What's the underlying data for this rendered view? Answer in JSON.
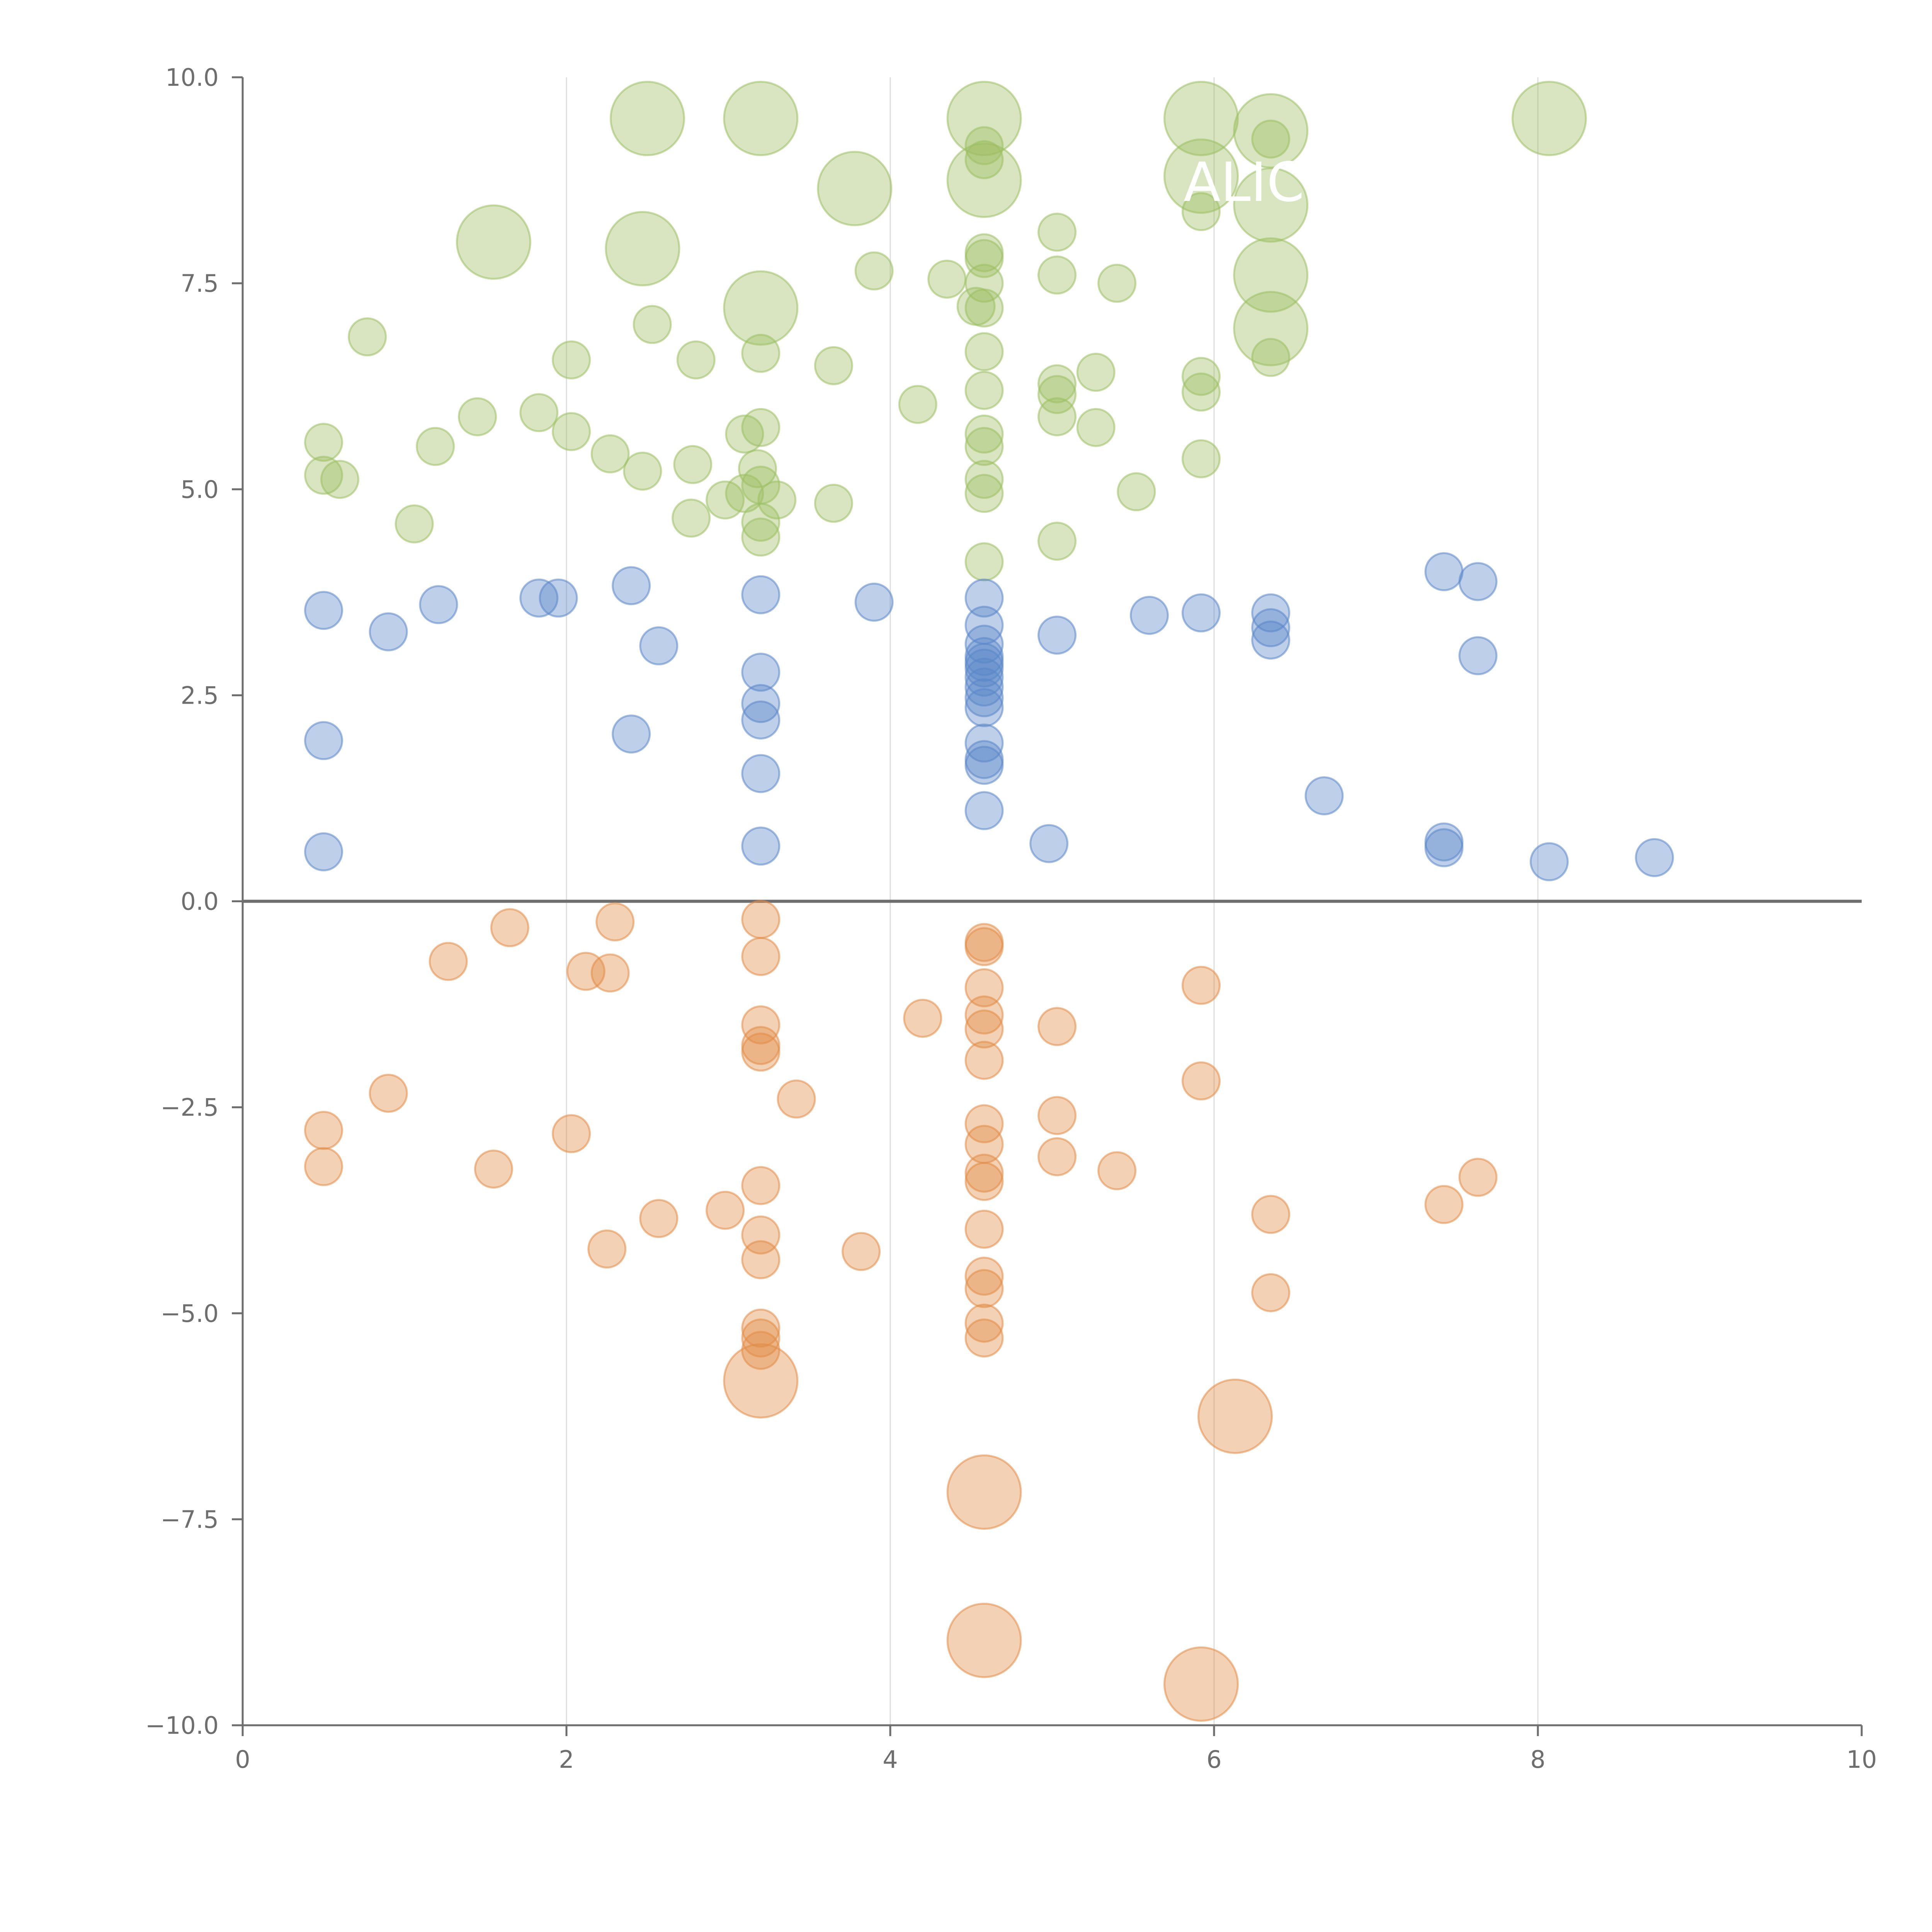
{
  "chart_data": {
    "type": "scatter",
    "title": "",
    "xlabel": "",
    "ylabel": "",
    "xlim": [
      0,
      10
    ],
    "ylim": [
      -10,
      10
    ],
    "x_ticks": [
      "0",
      "2",
      "4",
      "6",
      "8",
      "10"
    ],
    "y_ticks": [
      "10.0",
      "7.5",
      "5.0",
      "2.5",
      "0.0",
      "−2.5",
      "−5.0",
      "−7.5",
      "−10.0"
    ],
    "grid": "vertical lines at x ticks",
    "zero_line": true,
    "colors": {
      "green": "#9dbf62",
      "blue": "#5b86c8",
      "orange": "#e28c45"
    },
    "series": [
      {
        "color": "green",
        "points": [
          {
            "x": 2.5,
            "y": 9.5,
            "size": "large"
          },
          {
            "x": 3.2,
            "y": 9.5,
            "size": "large"
          },
          {
            "x": 4.58,
            "y": 9.5,
            "size": "large"
          },
          {
            "x": 5.92,
            "y": 9.5,
            "size": "large"
          },
          {
            "x": 6.35,
            "y": 9.35,
            "size": "large"
          },
          {
            "x": 8.07,
            "y": 9.5,
            "size": "large"
          },
          {
            "x": 3.78,
            "y": 8.65,
            "size": "large"
          },
          {
            "x": 4.58,
            "y": 8.75,
            "size": "large"
          },
          {
            "x": 5.92,
            "y": 8.8,
            "size": "large"
          },
          {
            "x": 6.35,
            "y": 8.45,
            "size": "large"
          },
          {
            "x": 1.55,
            "y": 8.0,
            "size": "large"
          },
          {
            "x": 2.47,
            "y": 7.92,
            "size": "large"
          },
          {
            "x": 3.2,
            "y": 7.2,
            "size": "large"
          },
          {
            "x": 6.35,
            "y": 7.6,
            "size": "large"
          },
          {
            "x": 6.35,
            "y": 6.95,
            "size": "large"
          },
          {
            "x": 4.58,
            "y": 9.17,
            "size": "small"
          },
          {
            "x": 4.58,
            "y": 9.0,
            "size": "small"
          },
          {
            "x": 6.35,
            "y": 9.25,
            "size": "small"
          },
          {
            "x": 5.92,
            "y": 8.37,
            "size": "small"
          },
          {
            "x": 5.03,
            "y": 8.12,
            "size": "small"
          },
          {
            "x": 4.58,
            "y": 7.87,
            "size": "small"
          },
          {
            "x": 4.58,
            "y": 7.8,
            "size": "small"
          },
          {
            "x": 3.9,
            "y": 7.65,
            "size": "small"
          },
          {
            "x": 4.35,
            "y": 7.55,
            "size": "small"
          },
          {
            "x": 4.58,
            "y": 7.5,
            "size": "small"
          },
          {
            "x": 5.03,
            "y": 7.6,
            "size": "small"
          },
          {
            "x": 5.4,
            "y": 7.5,
            "size": "small"
          },
          {
            "x": 4.53,
            "y": 7.22,
            "size": "small"
          },
          {
            "x": 4.58,
            "y": 7.2,
            "size": "small"
          },
          {
            "x": 2.53,
            "y": 7.0,
            "size": "small"
          },
          {
            "x": 0.77,
            "y": 6.85,
            "size": "small"
          },
          {
            "x": 2.03,
            "y": 6.57,
            "size": "small"
          },
          {
            "x": 2.8,
            "y": 6.57,
            "size": "small"
          },
          {
            "x": 3.2,
            "y": 6.65,
            "size": "small"
          },
          {
            "x": 4.58,
            "y": 6.67,
            "size": "small"
          },
          {
            "x": 6.35,
            "y": 6.6,
            "size": "small"
          },
          {
            "x": 3.65,
            "y": 6.5,
            "size": "small"
          },
          {
            "x": 5.27,
            "y": 6.42,
            "size": "small"
          },
          {
            "x": 5.92,
            "y": 6.37,
            "size": "small"
          },
          {
            "x": 5.03,
            "y": 6.28,
            "size": "small"
          },
          {
            "x": 4.58,
            "y": 6.2,
            "size": "small"
          },
          {
            "x": 5.92,
            "y": 6.18,
            "size": "small"
          },
          {
            "x": 5.03,
            "y": 6.15,
            "size": "small"
          },
          {
            "x": 4.17,
            "y": 6.03,
            "size": "small"
          },
          {
            "x": 1.83,
            "y": 5.93,
            "size": "small"
          },
          {
            "x": 1.45,
            "y": 5.88,
            "size": "small"
          },
          {
            "x": 5.03,
            "y": 5.88,
            "size": "small"
          },
          {
            "x": 2.03,
            "y": 5.7,
            "size": "small"
          },
          {
            "x": 3.2,
            "y": 5.75,
            "size": "small"
          },
          {
            "x": 3.1,
            "y": 5.67,
            "size": "small"
          },
          {
            "x": 4.58,
            "y": 5.67,
            "size": "small"
          },
          {
            "x": 5.27,
            "y": 5.75,
            "size": "small"
          },
          {
            "x": 0.5,
            "y": 5.57,
            "size": "small"
          },
          {
            "x": 1.19,
            "y": 5.52,
            "size": "small"
          },
          {
            "x": 4.58,
            "y": 5.52,
            "size": "small"
          },
          {
            "x": 2.27,
            "y": 5.43,
            "size": "small"
          },
          {
            "x": 5.92,
            "y": 5.37,
            "size": "small"
          },
          {
            "x": 2.78,
            "y": 5.3,
            "size": "small"
          },
          {
            "x": 2.47,
            "y": 5.22,
            "size": "small"
          },
          {
            "x": 3.18,
            "y": 5.25,
            "size": "small"
          },
          {
            "x": 0.5,
            "y": 5.17,
            "size": "small"
          },
          {
            "x": 0.6,
            "y": 5.12,
            "size": "small"
          },
          {
            "x": 4.58,
            "y": 5.12,
            "size": "small"
          },
          {
            "x": 3.2,
            "y": 5.05,
            "size": "small"
          },
          {
            "x": 3.1,
            "y": 4.95,
            "size": "small"
          },
          {
            "x": 4.58,
            "y": 4.95,
            "size": "small"
          },
          {
            "x": 5.52,
            "y": 4.97,
            "size": "small"
          },
          {
            "x": 2.98,
            "y": 4.87,
            "size": "small"
          },
          {
            "x": 3.3,
            "y": 4.87,
            "size": "small"
          },
          {
            "x": 3.65,
            "y": 4.83,
            "size": "small"
          },
          {
            "x": 1.06,
            "y": 4.58,
            "size": "small"
          },
          {
            "x": 2.77,
            "y": 4.65,
            "size": "small"
          },
          {
            "x": 3.2,
            "y": 4.6,
            "size": "small"
          },
          {
            "x": 3.2,
            "y": 4.42,
            "size": "small"
          },
          {
            "x": 5.03,
            "y": 4.37,
            "size": "small"
          },
          {
            "x": 4.58,
            "y": 4.12,
            "size": "small"
          }
        ]
      },
      {
        "color": "blue",
        "points": [
          {
            "x": 0.5,
            "y": 3.53
          },
          {
            "x": 0.9,
            "y": 3.27
          },
          {
            "x": 1.21,
            "y": 3.6
          },
          {
            "x": 1.83,
            "y": 3.68
          },
          {
            "x": 1.95,
            "y": 3.68
          },
          {
            "x": 2.4,
            "y": 3.83
          },
          {
            "x": 2.57,
            "y": 3.1
          },
          {
            "x": 3.2,
            "y": 3.72
          },
          {
            "x": 3.9,
            "y": 3.63
          },
          {
            "x": 4.58,
            "y": 3.68
          },
          {
            "x": 4.58,
            "y": 3.35
          },
          {
            "x": 4.58,
            "y": 3.12
          },
          {
            "x": 4.58,
            "y": 2.97
          },
          {
            "x": 4.58,
            "y": 2.9
          },
          {
            "x": 4.58,
            "y": 2.83
          },
          {
            "x": 4.58,
            "y": 2.72
          },
          {
            "x": 4.58,
            "y": 2.6
          },
          {
            "x": 4.58,
            "y": 2.47
          },
          {
            "x": 4.58,
            "y": 2.35
          },
          {
            "x": 5.03,
            "y": 3.23
          },
          {
            "x": 5.6,
            "y": 3.47
          },
          {
            "x": 5.92,
            "y": 3.5
          },
          {
            "x": 6.35,
            "y": 3.5
          },
          {
            "x": 6.35,
            "y": 3.32
          },
          {
            "x": 6.35,
            "y": 3.17
          },
          {
            "x": 7.42,
            "y": 4.0
          },
          {
            "x": 7.63,
            "y": 3.88
          },
          {
            "x": 7.63,
            "y": 2.98
          },
          {
            "x": 3.2,
            "y": 2.78
          },
          {
            "x": 3.2,
            "y": 2.4
          },
          {
            "x": 3.2,
            "y": 2.2
          },
          {
            "x": 3.2,
            "y": 1.55
          },
          {
            "x": 3.2,
            "y": 0.67
          },
          {
            "x": 0.5,
            "y": 1.95
          },
          {
            "x": 0.5,
            "y": 0.6
          },
          {
            "x": 2.4,
            "y": 2.03
          },
          {
            "x": 4.58,
            "y": 1.92
          },
          {
            "x": 4.58,
            "y": 1.72
          },
          {
            "x": 4.58,
            "y": 1.65
          },
          {
            "x": 4.58,
            "y": 1.1
          },
          {
            "x": 4.98,
            "y": 0.7
          },
          {
            "x": 6.68,
            "y": 1.28
          },
          {
            "x": 7.42,
            "y": 0.72
          },
          {
            "x": 7.42,
            "y": 0.65
          },
          {
            "x": 8.07,
            "y": 0.48
          },
          {
            "x": 8.72,
            "y": 0.53
          }
        ]
      },
      {
        "color": "orange",
        "points": [
          {
            "x": 1.27,
            "y": -0.73,
            "size": "small"
          },
          {
            "x": 1.65,
            "y": -0.32,
            "size": "small"
          },
          {
            "x": 2.12,
            "y": -0.85,
            "size": "small"
          },
          {
            "x": 2.27,
            "y": -0.87,
            "size": "small"
          },
          {
            "x": 2.3,
            "y": -0.25,
            "size": "small"
          },
          {
            "x": 3.2,
            "y": -0.22,
            "size": "small"
          },
          {
            "x": 3.2,
            "y": -0.67,
            "size": "small"
          },
          {
            "x": 3.2,
            "y": -1.5,
            "size": "small"
          },
          {
            "x": 3.2,
            "y": -1.75,
            "size": "small"
          },
          {
            "x": 3.2,
            "y": -1.83,
            "size": "small"
          },
          {
            "x": 4.2,
            "y": -1.42,
            "size": "small"
          },
          {
            "x": 4.58,
            "y": -0.5,
            "size": "small"
          },
          {
            "x": 4.58,
            "y": -0.55,
            "size": "small"
          },
          {
            "x": 4.58,
            "y": -1.05,
            "size": "small"
          },
          {
            "x": 4.58,
            "y": -1.38,
            "size": "small"
          },
          {
            "x": 4.58,
            "y": -1.55,
            "size": "small"
          },
          {
            "x": 4.58,
            "y": -1.93,
            "size": "small"
          },
          {
            "x": 5.03,
            "y": -1.52,
            "size": "small"
          },
          {
            "x": 5.92,
            "y": -1.02,
            "size": "small"
          },
          {
            "x": 5.92,
            "y": -2.18,
            "size": "small"
          },
          {
            "x": 0.5,
            "y": -2.78,
            "size": "small"
          },
          {
            "x": 0.5,
            "y": -3.22,
            "size": "small"
          },
          {
            "x": 0.9,
            "y": -2.33,
            "size": "small"
          },
          {
            "x": 1.55,
            "y": -3.25,
            "size": "small"
          },
          {
            "x": 2.03,
            "y": -2.82,
            "size": "small"
          },
          {
            "x": 3.42,
            "y": -2.4,
            "size": "small"
          },
          {
            "x": 4.58,
            "y": -2.7,
            "size": "small"
          },
          {
            "x": 4.58,
            "y": -2.95,
            "size": "small"
          },
          {
            "x": 4.58,
            "y": -3.3,
            "size": "small"
          },
          {
            "x": 4.58,
            "y": -3.4,
            "size": "small"
          },
          {
            "x": 5.03,
            "y": -2.6,
            "size": "small"
          },
          {
            "x": 5.03,
            "y": -3.1,
            "size": "small"
          },
          {
            "x": 5.4,
            "y": -3.27,
            "size": "small"
          },
          {
            "x": 7.42,
            "y": -3.68,
            "size": "small"
          },
          {
            "x": 7.63,
            "y": -3.35,
            "size": "small"
          },
          {
            "x": 3.2,
            "y": -3.45,
            "size": "small"
          },
          {
            "x": 2.98,
            "y": -3.75,
            "size": "small"
          },
          {
            "x": 2.57,
            "y": -3.85,
            "size": "small"
          },
          {
            "x": 2.25,
            "y": -4.22,
            "size": "small"
          },
          {
            "x": 3.2,
            "y": -4.05,
            "size": "small"
          },
          {
            "x": 3.2,
            "y": -4.35,
            "size": "small"
          },
          {
            "x": 3.82,
            "y": -4.25,
            "size": "small"
          },
          {
            "x": 4.58,
            "y": -3.98,
            "size": "small"
          },
          {
            "x": 4.58,
            "y": -4.55,
            "size": "small"
          },
          {
            "x": 4.58,
            "y": -4.7,
            "size": "small"
          },
          {
            "x": 6.35,
            "y": -3.8,
            "size": "small"
          },
          {
            "x": 6.35,
            "y": -4.75,
            "size": "small"
          },
          {
            "x": 3.2,
            "y": -5.18,
            "size": "small"
          },
          {
            "x": 3.2,
            "y": -5.3,
            "size": "small"
          },
          {
            "x": 3.2,
            "y": -5.45,
            "size": "small"
          },
          {
            "x": 4.58,
            "y": -5.12,
            "size": "small"
          },
          {
            "x": 4.58,
            "y": -5.3,
            "size": "small"
          },
          {
            "x": 3.2,
            "y": -5.82,
            "size": "large"
          },
          {
            "x": 4.58,
            "y": -7.17,
            "size": "large"
          },
          {
            "x": 4.58,
            "y": -8.97,
            "size": "large"
          },
          {
            "x": 6.13,
            "y": -6.25,
            "size": "large"
          },
          {
            "x": 5.92,
            "y": -9.5,
            "size": "large"
          }
        ]
      }
    ],
    "annotations": [
      "ALIC"
    ]
  }
}
